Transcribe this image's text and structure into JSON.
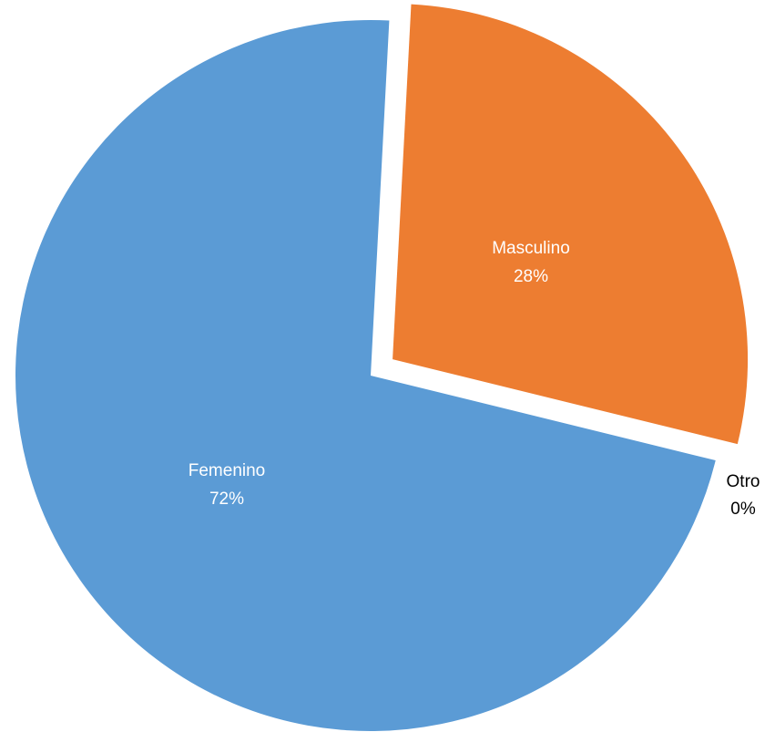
{
  "chart_data": {
    "type": "pie",
    "slices": [
      {
        "label": "Masculino",
        "value": 28,
        "percent_label": "28%",
        "color": "#ED7D31",
        "exploded": true
      },
      {
        "label": "Otro",
        "value": 0,
        "percent_label": "0%",
        "color": "#A5A5A5",
        "exploded": false
      },
      {
        "label": "Femenino",
        "value": 72,
        "percent_label": "72%",
        "color": "#5B9BD5",
        "exploded": false
      }
    ],
    "start": "top, clockwise",
    "legend": "none",
    "data_labels": "category and percent"
  }
}
